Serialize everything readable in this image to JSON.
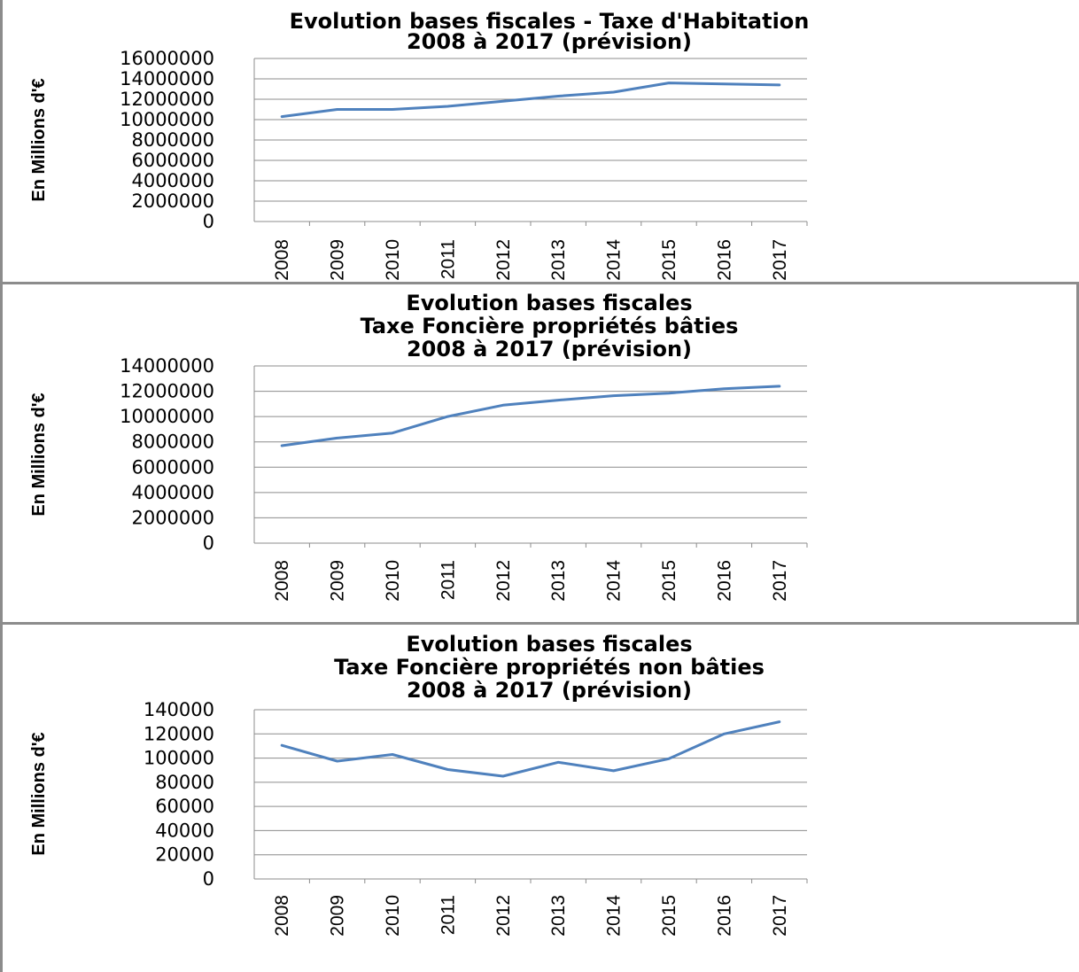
{
  "chart_data": [
    {
      "type": "line",
      "title": [
        "Evolution bases fiscales - Taxe d'Habitation",
        "2008 à 2017 (prévision)"
      ],
      "ylabel": "En Millions d'€",
      "xlabel": "",
      "categories": [
        "2008",
        "2009",
        "2010",
        "2011",
        "2012",
        "2013",
        "2014",
        "2015",
        "2016",
        "2017"
      ],
      "yticks": [
        "0",
        "2000000",
        "4000000",
        "6000000",
        "8000000",
        "10000000",
        "12000000",
        "14000000",
        "16000000"
      ],
      "ylim": [
        0,
        16000000
      ],
      "series": [
        {
          "values": [
            10300000,
            11000000,
            11000000,
            11300000,
            11800000,
            12300000,
            12700000,
            13600000,
            13500000,
            13400000
          ]
        }
      ],
      "grid": true,
      "line_color": "#4f81bd"
    },
    {
      "type": "line",
      "title": [
        "Evolution bases fiscales",
        "Taxe Foncière propriétés bâties",
        "2008 à 2017 (prévision)"
      ],
      "ylabel": "En Millions d'€",
      "xlabel": "",
      "categories": [
        "2008",
        "2009",
        "2010",
        "2011",
        "2012",
        "2013",
        "2014",
        "2015",
        "2016",
        "2017"
      ],
      "yticks": [
        "0",
        "2000000",
        "4000000",
        "6000000",
        "8000000",
        "10000000",
        "12000000",
        "14000000"
      ],
      "ylim": [
        0,
        14000000
      ],
      "series": [
        {
          "values": [
            7700000,
            8300000,
            8700000,
            10000000,
            10900000,
            11300000,
            11650000,
            11850000,
            12200000,
            12400000
          ]
        }
      ],
      "grid": true,
      "line_color": "#4f81bd"
    },
    {
      "type": "line",
      "title": [
        "Evolution bases fiscales",
        "Taxe Foncière propriétés non bâties",
        "2008 à 2017 (prévision)"
      ],
      "ylabel": "En Millions d'€",
      "xlabel": "",
      "categories": [
        "2008",
        "2009",
        "2010",
        "2011",
        "2012",
        "2013",
        "2014",
        "2015",
        "2016",
        "2017"
      ],
      "yticks": [
        "0",
        "20000",
        "40000",
        "60000",
        "80000",
        "100000",
        "120000",
        "140000"
      ],
      "ylim": [
        0,
        140000
      ],
      "series": [
        {
          "values": [
            110500,
            97500,
            103000,
            90500,
            85000,
            96500,
            89500,
            99500,
            120000,
            130000
          ]
        }
      ],
      "grid": true,
      "line_color": "#4f81bd"
    }
  ]
}
